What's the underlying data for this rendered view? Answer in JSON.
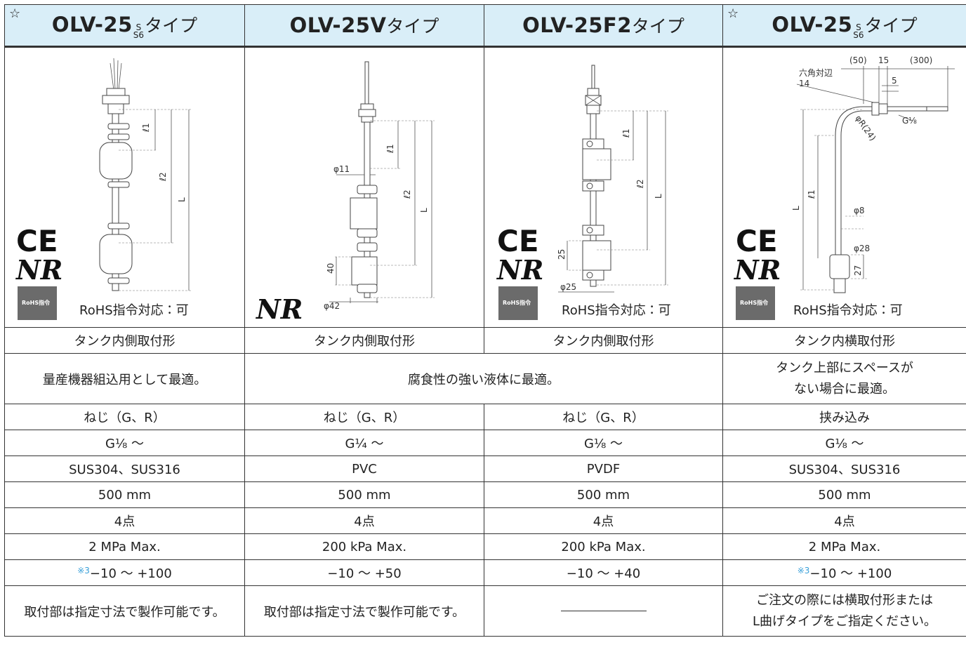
{
  "header": [
    {
      "mark": "☆",
      "model": "OLV-25",
      "sub_top": "S",
      "sub_bottom": "S6",
      "suffix": "タイプ"
    },
    {
      "model": "OLV-25V",
      "suffix": "タイプ"
    },
    {
      "model": "OLV-25F2",
      "suffix": "タイプ"
    },
    {
      "mark": "☆",
      "model": "OLV-25",
      "sub_top": "S",
      "sub_bottom": "S6",
      "suffix": "タイプ"
    }
  ],
  "figures": [
    {
      "ce": "CE",
      "nr": "NR",
      "badge": "RoHS指令",
      "rohs": "RoHS指令対応：可",
      "dims": [
        "ℓ1",
        "ℓ2",
        "L"
      ]
    },
    {
      "nr": "NR",
      "dims": [
        "φ11",
        "ℓ1",
        "ℓ2",
        "L",
        "40",
        "φ42"
      ]
    },
    {
      "ce": "CE",
      "nr": "NR",
      "badge": "RoHS指令",
      "rohs": "RoHS指令対応：可",
      "dims": [
        "ℓ1",
        "ℓ2",
        "L",
        "25",
        "φ25"
      ]
    },
    {
      "ce": "CE",
      "nr": "NR",
      "badge": "RoHS指令",
      "rohs": "RoHS指令対応：可",
      "dims": [
        "(50)",
        "15",
        "(300)",
        "六角対辺",
        "14",
        "5",
        "G⅛",
        "φR(24)",
        "ℓ1",
        "L",
        "φ8",
        "φ28",
        "27"
      ]
    }
  ],
  "table": {
    "rows": [
      [
        "タンク内側取付形",
        "タンク内側取付形",
        "タンク内側取付形",
        "タンク内横取付形"
      ],
      [
        "量産機器組込用として最適。",
        "腐食性の強い液体に最適。",
        [
          "タンク上部にスペースが",
          "ない場合に最適。"
        ]
      ],
      [
        "ねじ（G、R）",
        "ねじ（G、R）",
        "ねじ（G、R）",
        "挟み込み"
      ],
      [
        "G⅛ ～",
        "G¼ ～",
        "G⅛ ～",
        "G⅛ ～"
      ],
      [
        "SUS304、SUS316",
        "PVC",
        "PVDF",
        "SUS304、SUS316"
      ],
      [
        "500 mm",
        "500 mm",
        "500 mm",
        "500 mm"
      ],
      [
        "4点",
        "4点",
        "4点",
        "4点"
      ],
      [
        "2 MPa  Max.",
        "200 kPa  Max.",
        "200 kPa  Max.",
        "2 MPa  Max."
      ],
      [
        {
          "note": "※3",
          "text": "−10 ～ +100"
        },
        "−10 ～ +50",
        "−10 ～ +40",
        {
          "note": "※3",
          "text": "−10 ～ +100"
        }
      ],
      [
        "取付部は指定寸法で製作可能です。",
        "取付部は指定寸法で製作可能です。",
        [
          "ご注文の際には横取付形または",
          "L曲げタイプをご指定ください。"
        ]
      ]
    ]
  }
}
